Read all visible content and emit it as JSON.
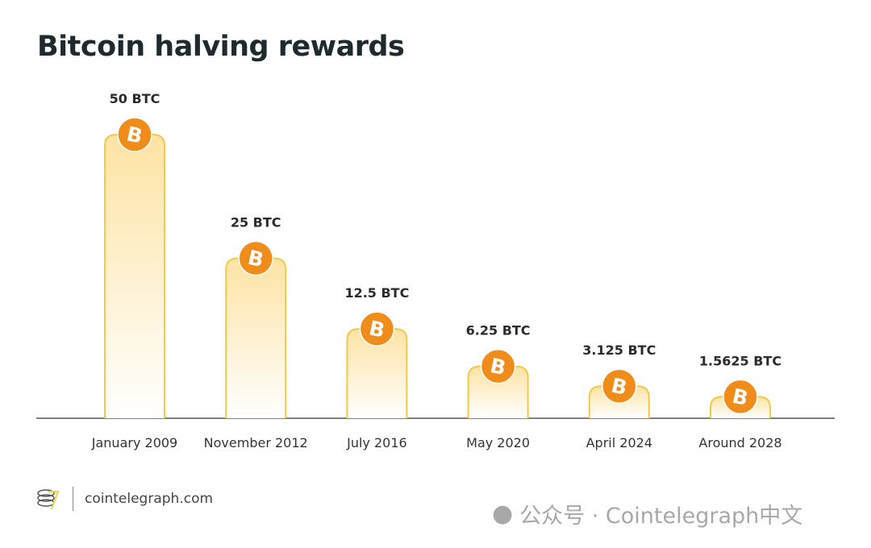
{
  "title": "Bitcoin halving rewards",
  "chart_data": {
    "type": "bar",
    "title": "Bitcoin halving rewards",
    "categories": [
      "January 2009",
      "November 2012",
      "July 2016",
      "May 2020",
      "April 2024",
      "Around 2028"
    ],
    "values": [
      50,
      25,
      12.5,
      6.25,
      3.125,
      1.5625
    ],
    "data_labels": [
      "50 BTC",
      "25 BTC",
      "12.5 BTC",
      "6.25 BTC",
      "3.125 BTC",
      "1.5625 BTC"
    ],
    "unit": "BTC",
    "xlabel": "",
    "ylabel": "",
    "grid": false,
    "colors": {
      "bar_top": "#fde3a4",
      "bar_bottom": "#ffffff",
      "bar_stroke": "#f2c94c",
      "coin": "#f08c1a",
      "text": "#2b2b2b"
    }
  },
  "footer": {
    "url": "cointelegraph.com",
    "watermark": "公众号 · Cointelegraph中文"
  }
}
